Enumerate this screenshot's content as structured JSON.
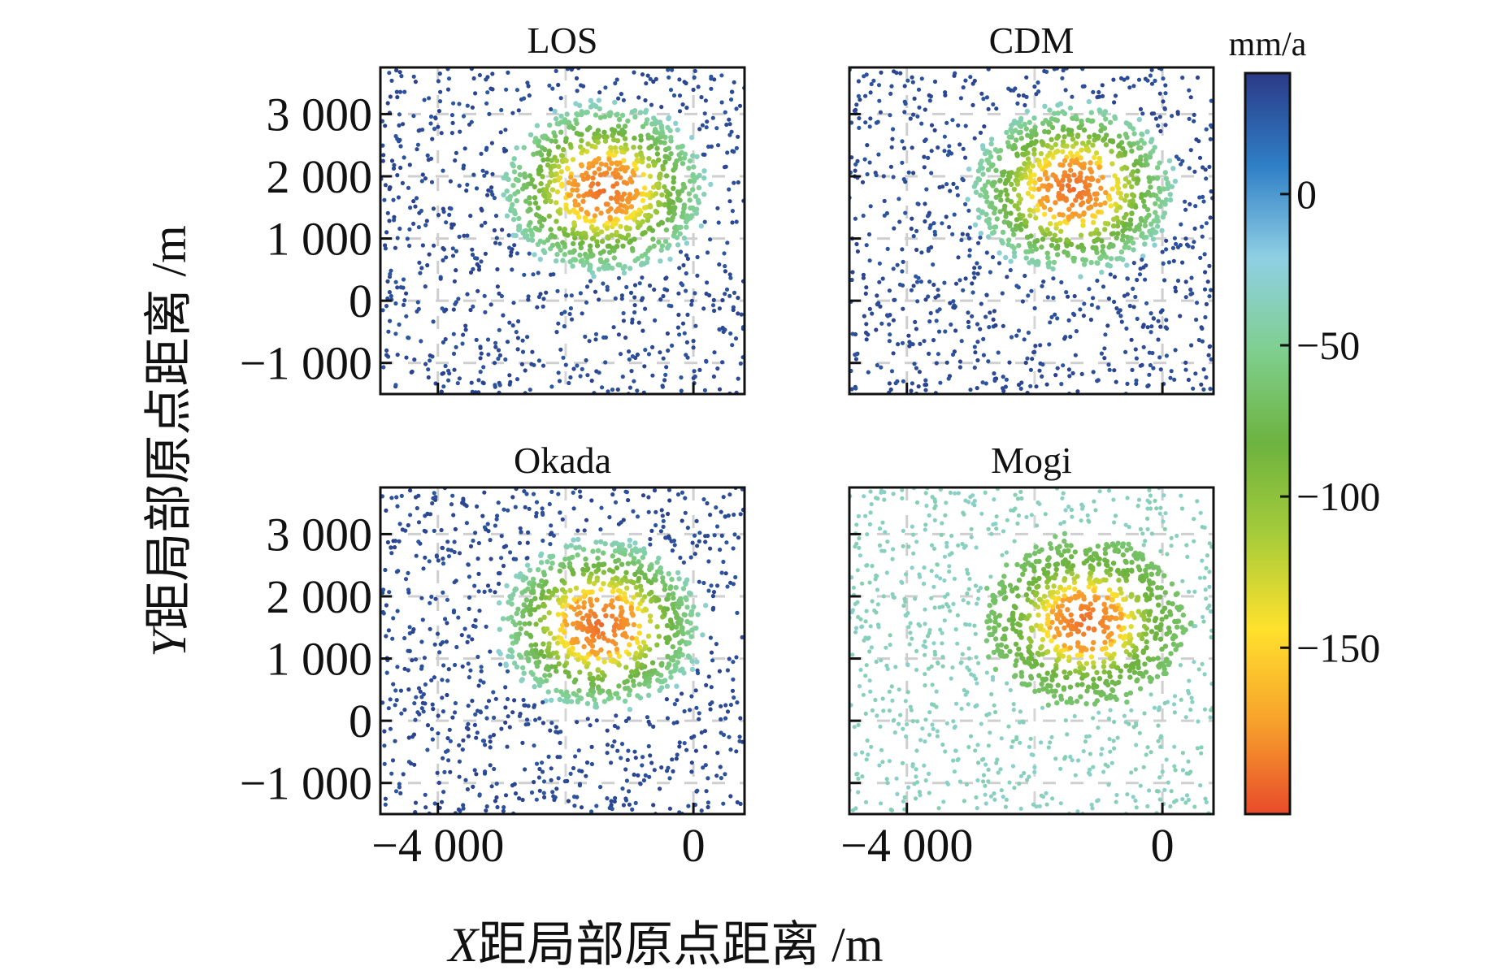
{
  "chart_data": {
    "type": "scatter",
    "subtype": "deformation-map-panels",
    "panels": [
      {
        "title": "LOS",
        "field": "observed",
        "center": [
          -1400,
          1800
        ],
        "peak_rate": -195,
        "halo_rate": -85,
        "far_rate": 32
      },
      {
        "title": "CDM",
        "field": "model",
        "center": [
          -1400,
          1800
        ],
        "peak_rate": -195,
        "halo_rate": -85,
        "far_rate": 32
      },
      {
        "title": "Okada",
        "field": "model",
        "center": [
          -1450,
          1550
        ],
        "peak_rate": -195,
        "halo_rate": -85,
        "far_rate": 32
      },
      {
        "title": "Mogi",
        "field": "model",
        "center": [
          -1200,
          1600
        ],
        "peak_rate": -195,
        "halo_rate": -85,
        "far_rate": -35
      }
    ],
    "x_axis": {
      "label_var": "X",
      "label": "距局部原点距离 /m",
      "ticks": [
        -4000,
        0
      ],
      "tick_labels": [
        "−4 000",
        "0"
      ],
      "range": [
        -4900,
        800
      ]
    },
    "y_axis": {
      "label_var": "Y",
      "label": "距局部原点距离 /m",
      "ticks": [
        3000,
        2000,
        1000,
        0,
        -1000
      ],
      "tick_labels": [
        "3 000",
        "2 000",
        "1 000",
        "0",
        "−1 000"
      ],
      "range": [
        -1500,
        3750
      ]
    },
    "colorbar": {
      "unit": "mm/a",
      "range": [
        -205,
        40
      ],
      "ticks": [
        0,
        -50,
        -100,
        -150
      ],
      "tick_labels": [
        "0",
        "−50",
        "−100",
        "−150"
      ],
      "colormap": [
        "#2b3a87",
        "#2f7fc6",
        "#8fd0e4",
        "#7fcf8f",
        "#6db33f",
        "#a7cc3a",
        "#ffe12d",
        "#f7a22c",
        "#e84b2b"
      ]
    },
    "grid": true
  }
}
